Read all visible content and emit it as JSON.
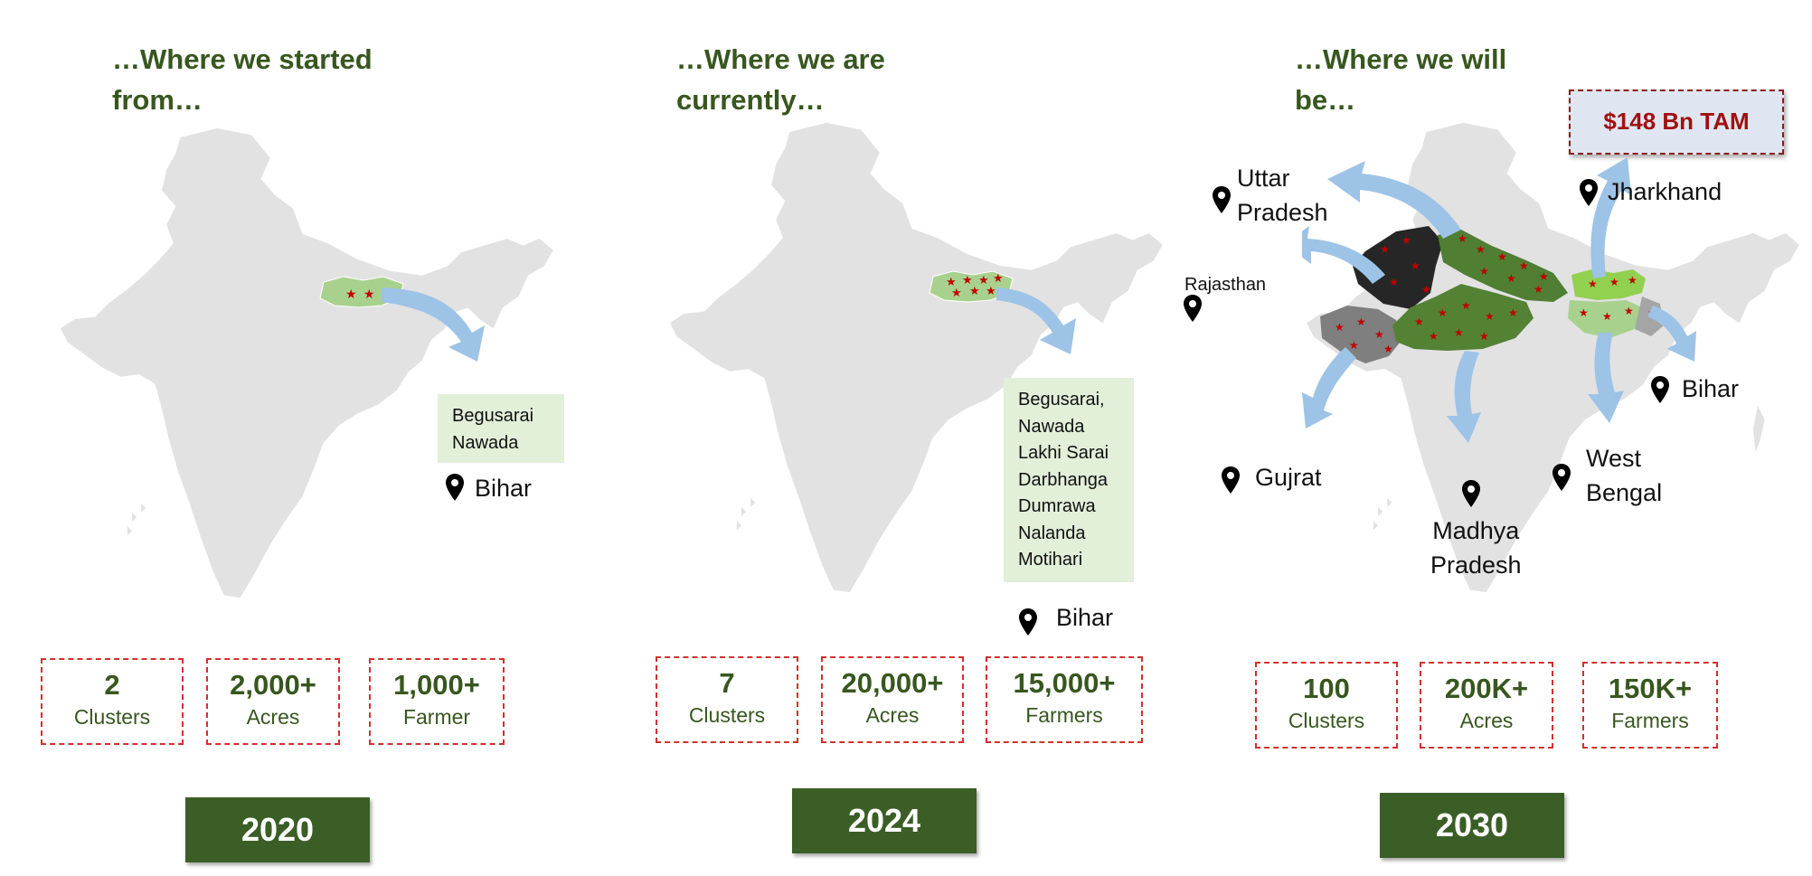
{
  "panels": [
    {
      "heading_line1": "…Where we started",
      "heading_line2": "from…",
      "districts": [
        "Begusarai",
        "Nawada"
      ],
      "state": "Bihar",
      "stats": [
        {
          "value": "2",
          "label": "Clusters"
        },
        {
          "value": "2,000+",
          "label": "Acres"
        },
        {
          "value": "1,000+",
          "label": "Farmer"
        }
      ],
      "year": "2020"
    },
    {
      "heading_line1": "…Where we are",
      "heading_line2": "currently…",
      "districts": [
        "Begusarai,",
        "Nawada",
        "Lakhi Sarai",
        "Darbhanga",
        "Dumrawa",
        "Nalanda",
        "Motihari"
      ],
      "state": "Bihar",
      "stats": [
        {
          "value": "7",
          "label": "Clusters"
        },
        {
          "value": "20,000+",
          "label": "Acres"
        },
        {
          "value": "15,000+",
          "label": "Farmers"
        }
      ],
      "year": "2024"
    },
    {
      "heading_line1": "…Where we will",
      "heading_line2": "be…",
      "tam": "$148 Bn TAM",
      "states": {
        "uttar_pradesh_1": "Uttar",
        "uttar_pradesh_2": "Pradesh",
        "rajasthan": "Rajasthan",
        "jharkhand": "Jharkhand",
        "bihar": "Bihar",
        "gujrat": "Gujrat",
        "madhya_pradesh_1": "Madhya",
        "madhya_pradesh_2": "Pradesh",
        "west_bengal_1": "West",
        "west_bengal_2": "Bengal"
      },
      "stats": [
        {
          "value": "100",
          "label": "Clusters"
        },
        {
          "value": "200K+",
          "label": "Acres"
        },
        {
          "value": "150K+",
          "label": "Farmers"
        }
      ],
      "year": "2030"
    }
  ],
  "colors": {
    "heading": "#38571f",
    "map_base": "#e2e2e2",
    "highlight_light": "#a9d18e",
    "highlight_dark": "#507e32",
    "rajasthan": "#262626",
    "gujarat": "#7f7f7f",
    "arrow": "#9dc3e6",
    "star": "#c00000",
    "year_box": "#3b5e27",
    "stat_border": "#d0312d"
  },
  "icons": [
    "location-pin-icon",
    "star-icon",
    "arrow-icon"
  ]
}
